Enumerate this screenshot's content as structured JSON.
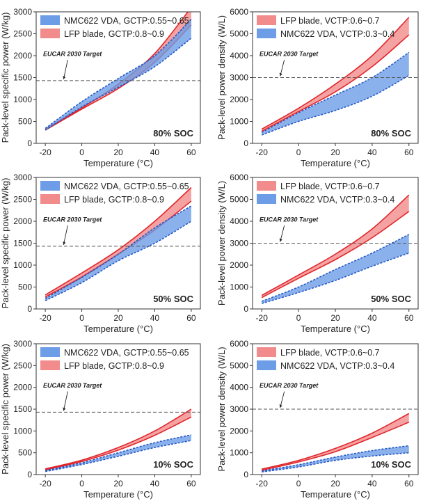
{
  "colors": {
    "lfp_fill": "#f28b8b",
    "lfp_line": "#e0262b",
    "nmc_fill": "#6d9de6",
    "nmc_line": "#2458c4",
    "target_line": "#555555",
    "axis": "#333333"
  },
  "chart_data": [
    {
      "type": "area",
      "title": "",
      "xlabel": "Temperature (°C)",
      "ylabel": "Pack-level specific power (W/kg)",
      "xlim": [
        -25,
        65
      ],
      "ylim": [
        0,
        3000
      ],
      "xticks": [
        -20,
        0,
        20,
        40,
        60
      ],
      "yticks": [
        0,
        500,
        1000,
        1500,
        2000,
        2500,
        3000
      ],
      "x": [
        -20,
        0,
        20,
        40,
        60
      ],
      "series": [
        {
          "key": "lfp",
          "name": "LFP blade, GCTP:0.8~0.9",
          "lower": [
            300,
            780,
            1250,
            1850,
            2700
          ],
          "upper": [
            330,
            810,
            1350,
            2050,
            3100
          ]
        },
        {
          "key": "nmc",
          "name": "NMC622 VDA, GCTP:0.55~0.65",
          "lower": [
            300,
            830,
            1280,
            1750,
            2400
          ],
          "upper": [
            340,
            950,
            1480,
            2000,
            2830
          ]
        }
      ],
      "legend_order": [
        "nmc",
        "lfp"
      ],
      "target": {
        "label": "EUCAR 2030 Target",
        "value": 1430
      },
      "annotation": "80% SOC",
      "grid": false
    },
    {
      "type": "area",
      "title": "",
      "xlabel": "Temperature (°C)",
      "ylabel": "Pack-level power density (W/L)",
      "xlim": [
        -25,
        65
      ],
      "ylim": [
        0,
        6000
      ],
      "xticks": [
        -20,
        0,
        20,
        40,
        60
      ],
      "yticks": [
        0,
        1000,
        2000,
        3000,
        4000,
        5000,
        6000
      ],
      "x": [
        -20,
        0,
        20,
        40,
        60
      ],
      "series": [
        {
          "key": "nmc",
          "name": "NMC622 VDA, VCTP:0.3~0.4",
          "lower": [
            380,
            1000,
            1500,
            2150,
            3100
          ],
          "upper": [
            500,
            1400,
            2200,
            3000,
            4150
          ]
        },
        {
          "key": "lfp",
          "name": "LFP blade, VCTP:0.6~0.7",
          "lower": [
            550,
            1450,
            2350,
            3500,
            4950
          ],
          "upper": [
            650,
            1600,
            2700,
            4000,
            5750
          ]
        }
      ],
      "legend_order": [
        "lfp",
        "nmc"
      ],
      "target": {
        "label": "EUCAR 2030 Target",
        "value": 3000
      },
      "annotation": "80% SOC",
      "grid": false
    },
    {
      "type": "area",
      "title": "",
      "xlabel": "Temperature (°C)",
      "ylabel": "Pack-level specific power (W/kg)",
      "xlim": [
        -25,
        65
      ],
      "ylim": [
        0,
        3000
      ],
      "xticks": [
        -20,
        0,
        20,
        40,
        60
      ],
      "yticks": [
        0,
        500,
        1000,
        1500,
        2000,
        2500,
        3000
      ],
      "x": [
        -20,
        0,
        20,
        40,
        60
      ],
      "series": [
        {
          "key": "lfp",
          "name": "LFP blade, GCTP:0.8~0.9",
          "lower": [
            270,
            730,
            1250,
            1800,
            2460
          ],
          "upper": [
            320,
            820,
            1350,
            2000,
            2770
          ]
        },
        {
          "key": "nmc",
          "name": "NMC622 VDA, GCTP:0.55~0.65",
          "lower": [
            190,
            600,
            1100,
            1500,
            2000
          ],
          "upper": [
            240,
            720,
            1250,
            1850,
            2350
          ]
        }
      ],
      "legend_order": [
        "nmc",
        "lfp"
      ],
      "target": {
        "label": "EUCAR 2030 Target",
        "value": 1430
      },
      "annotation": "50% SOC",
      "grid": false
    },
    {
      "type": "area",
      "title": "",
      "xlabel": "Temperature (°C)",
      "ylabel": "Pack-level power density (W/L)",
      "xlim": [
        -25,
        65
      ],
      "ylim": [
        0,
        6000
      ],
      "xticks": [
        -20,
        0,
        20,
        40,
        60
      ],
      "yticks": [
        0,
        1000,
        2000,
        3000,
        4000,
        5000,
        6000
      ],
      "x": [
        -20,
        0,
        20,
        40,
        60
      ],
      "series": [
        {
          "key": "nmc",
          "name": "NMC622 VDA, VCTP:0.3~0.4",
          "lower": [
            250,
            750,
            1300,
            1950,
            2550
          ],
          "upper": [
            350,
            1000,
            1800,
            2550,
            3400
          ]
        },
        {
          "key": "lfp",
          "name": "LFP blade, VCTP:0.6~0.7",
          "lower": [
            520,
            1400,
            2250,
            3250,
            4450
          ],
          "upper": [
            620,
            1550,
            2500,
            3650,
            5200
          ]
        }
      ],
      "legend_order": [
        "lfp",
        "nmc"
      ],
      "target": {
        "label": "EUCAR 2030 Target",
        "value": 3000
      },
      "annotation": "50% SOC",
      "grid": false
    },
    {
      "type": "area",
      "title": "",
      "xlabel": "Temperature (°C)",
      "ylabel": "Pack-level specific power (W/kg)",
      "xlim": [
        -25,
        65
      ],
      "ylim": [
        0,
        3000
      ],
      "xticks": [
        -20,
        0,
        20,
        40,
        60
      ],
      "yticks": [
        0,
        500,
        1000,
        1500,
        2000,
        2500,
        3000
      ],
      "x": [
        -20,
        0,
        20,
        40,
        60
      ],
      "series": [
        {
          "key": "lfp",
          "name": "LFP blade, GCTP:0.8~0.9",
          "lower": [
            110,
            300,
            560,
            900,
            1320
          ],
          "upper": [
            130,
            330,
            620,
            1000,
            1500
          ]
        },
        {
          "key": "nmc",
          "name": "NMC622 VDA, GCTP:0.55~0.65",
          "lower": [
            70,
            230,
            420,
            620,
            780
          ],
          "upper": [
            90,
            270,
            500,
            730,
            910
          ]
        }
      ],
      "legend_order": [
        "nmc",
        "lfp"
      ],
      "target": {
        "label": "EUCAR 2030 Target",
        "value": 1430
      },
      "annotation": "10% SOC",
      "grid": false
    },
    {
      "type": "area",
      "title": "",
      "xlabel": "Temperature (°C)",
      "ylabel": "Pack-level power density (W/L)",
      "xlim": [
        -25,
        65
      ],
      "ylim": [
        0,
        6000
      ],
      "xticks": [
        -20,
        0,
        20,
        40,
        60
      ],
      "yticks": [
        0,
        1000,
        2000,
        3000,
        4000,
        5000,
        6000
      ],
      "x": [
        -20,
        0,
        20,
        40,
        60
      ],
      "series": [
        {
          "key": "nmc",
          "name": "NMC622 VDA, VCTP:0.3~0.4",
          "lower": [
            120,
            350,
            650,
            850,
            1000
          ],
          "upper": [
            170,
            450,
            800,
            1100,
            1320
          ]
        },
        {
          "key": "lfp",
          "name": "LFP blade, VCTP:0.6~0.7",
          "lower": [
            200,
            580,
            1050,
            1700,
            2400
          ],
          "upper": [
            250,
            650,
            1200,
            1900,
            2800
          ]
        }
      ],
      "legend_order": [
        "lfp",
        "nmc"
      ],
      "target": {
        "label": "EUCAR 2030 Target",
        "value": 3000
      },
      "annotation": "10% SOC",
      "grid": false
    }
  ]
}
